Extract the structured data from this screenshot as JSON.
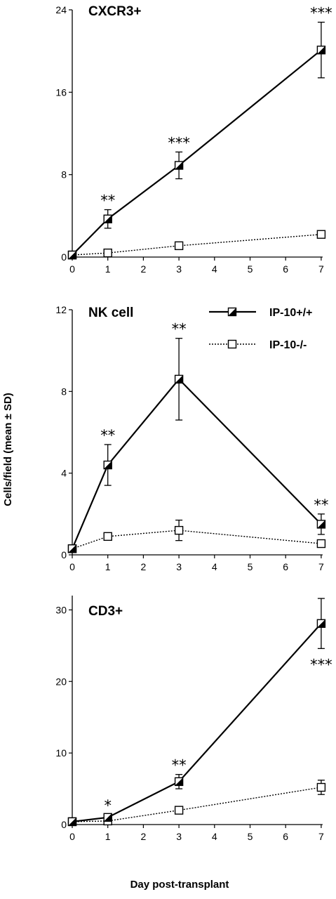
{
  "chart_data": {
    "type": "line",
    "xlabel": "Day post-transplant",
    "ylabel": "Cells/field (mean ± SD)",
    "x_ticks": [
      "0",
      "1",
      "2",
      "3",
      "4",
      "5",
      "6",
      "7"
    ],
    "legend": {
      "placement": "top-right of middle panel",
      "entries": [
        {
          "label": "IP-10+/+",
          "marker": "half-filled-square",
          "line": "solid"
        },
        {
          "label": "IP-10-/-",
          "marker": "open-square",
          "line": "dotted"
        }
      ]
    },
    "panels": [
      {
        "title": "CXCR3+",
        "ylim": [
          0,
          24
        ],
        "y_ticks": [
          "0",
          "8",
          "16",
          "24"
        ],
        "series": [
          {
            "name": "IP-10+/+",
            "x": [
              0,
              1,
              3,
              7
            ],
            "y": [
              0.2,
              3.7,
              8.9,
              20.1
            ],
            "err": [
              0,
              0.9,
              1.3,
              2.7
            ]
          },
          {
            "name": "IP-10-/-",
            "x": [
              0,
              1,
              3,
              7
            ],
            "y": [
              0.2,
              0.4,
              1.1,
              2.2
            ],
            "err": [
              0,
              0,
              0,
              0
            ]
          }
        ],
        "annotations": [
          {
            "x": 1,
            "text": "**",
            "pos": "above"
          },
          {
            "x": 3,
            "text": "***",
            "pos": "above"
          },
          {
            "x": 7,
            "text": "***",
            "pos": "above"
          }
        ]
      },
      {
        "title": "NK cell",
        "ylim": [
          0,
          12
        ],
        "y_ticks": [
          "0",
          "4",
          "8",
          "12"
        ],
        "series": [
          {
            "name": "IP-10+/+",
            "x": [
              0,
              1,
              3,
              7
            ],
            "y": [
              0.3,
              4.4,
              8.6,
              1.5
            ],
            "err": [
              0,
              1.0,
              2.0,
              0.5
            ]
          },
          {
            "name": "IP-10-/-",
            "x": [
              0,
              1,
              3,
              7
            ],
            "y": [
              0.3,
              0.9,
              1.2,
              0.55
            ],
            "err": [
              0,
              0,
              0.5,
              0
            ]
          }
        ],
        "annotations": [
          {
            "x": 1,
            "text": "**",
            "pos": "above"
          },
          {
            "x": 3,
            "text": "**",
            "pos": "above"
          },
          {
            "x": 7,
            "text": "**",
            "pos": "above"
          }
        ]
      },
      {
        "title": "CD3+",
        "ylim": [
          0,
          32
        ],
        "y_ticks": [
          "0",
          "10",
          "20",
          "30"
        ],
        "series": [
          {
            "name": "IP-10+/+",
            "x": [
              0,
              1,
              3,
              7
            ],
            "y": [
              0.4,
              1.0,
              6.0,
              28.1
            ],
            "err": [
              0,
              0,
              1.0,
              3.5
            ]
          },
          {
            "name": "IP-10-/-",
            "x": [
              0,
              1,
              3,
              7
            ],
            "y": [
              0.4,
              0.5,
              2.0,
              5.2
            ],
            "err": [
              0,
              0,
              0,
              1.0
            ]
          }
        ],
        "annotations": [
          {
            "x": 1,
            "text": "*",
            "pos": "above"
          },
          {
            "x": 3,
            "text": "**",
            "pos": "above"
          },
          {
            "x": 7,
            "text": "***",
            "pos": "below"
          }
        ]
      }
    ]
  }
}
